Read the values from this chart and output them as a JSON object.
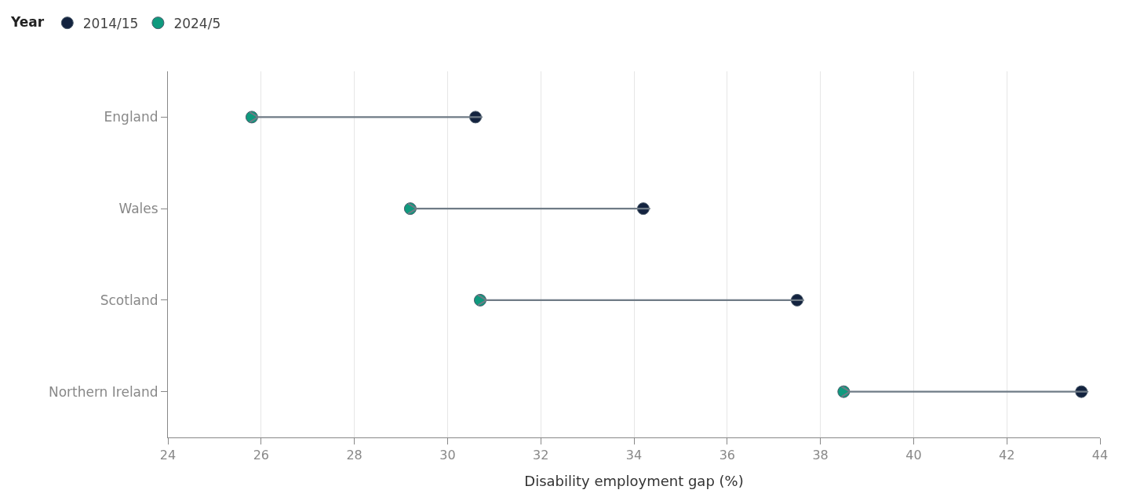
{
  "chart_data": {
    "type": "scatter",
    "orientation": "horizontal",
    "xlabel": "Disability employment gap (%)",
    "legend_title": "Year",
    "categories": [
      "England",
      "Wales",
      "Scotland",
      "Northern Ireland"
    ],
    "series": [
      {
        "name": "2014/15",
        "color": "#13233f",
        "values": [
          30.6,
          34.2,
          37.5,
          43.6
        ]
      },
      {
        "name": "2024/5",
        "color": "#0f9a7e",
        "values": [
          25.8,
          29.2,
          30.7,
          38.5
        ]
      }
    ],
    "xlim": [
      24,
      44
    ],
    "xticks": [
      24,
      26,
      28,
      30,
      32,
      34,
      36,
      38,
      40,
      42,
      44
    ],
    "grid": "x",
    "legend": "top left",
    "marker": "circle"
  }
}
